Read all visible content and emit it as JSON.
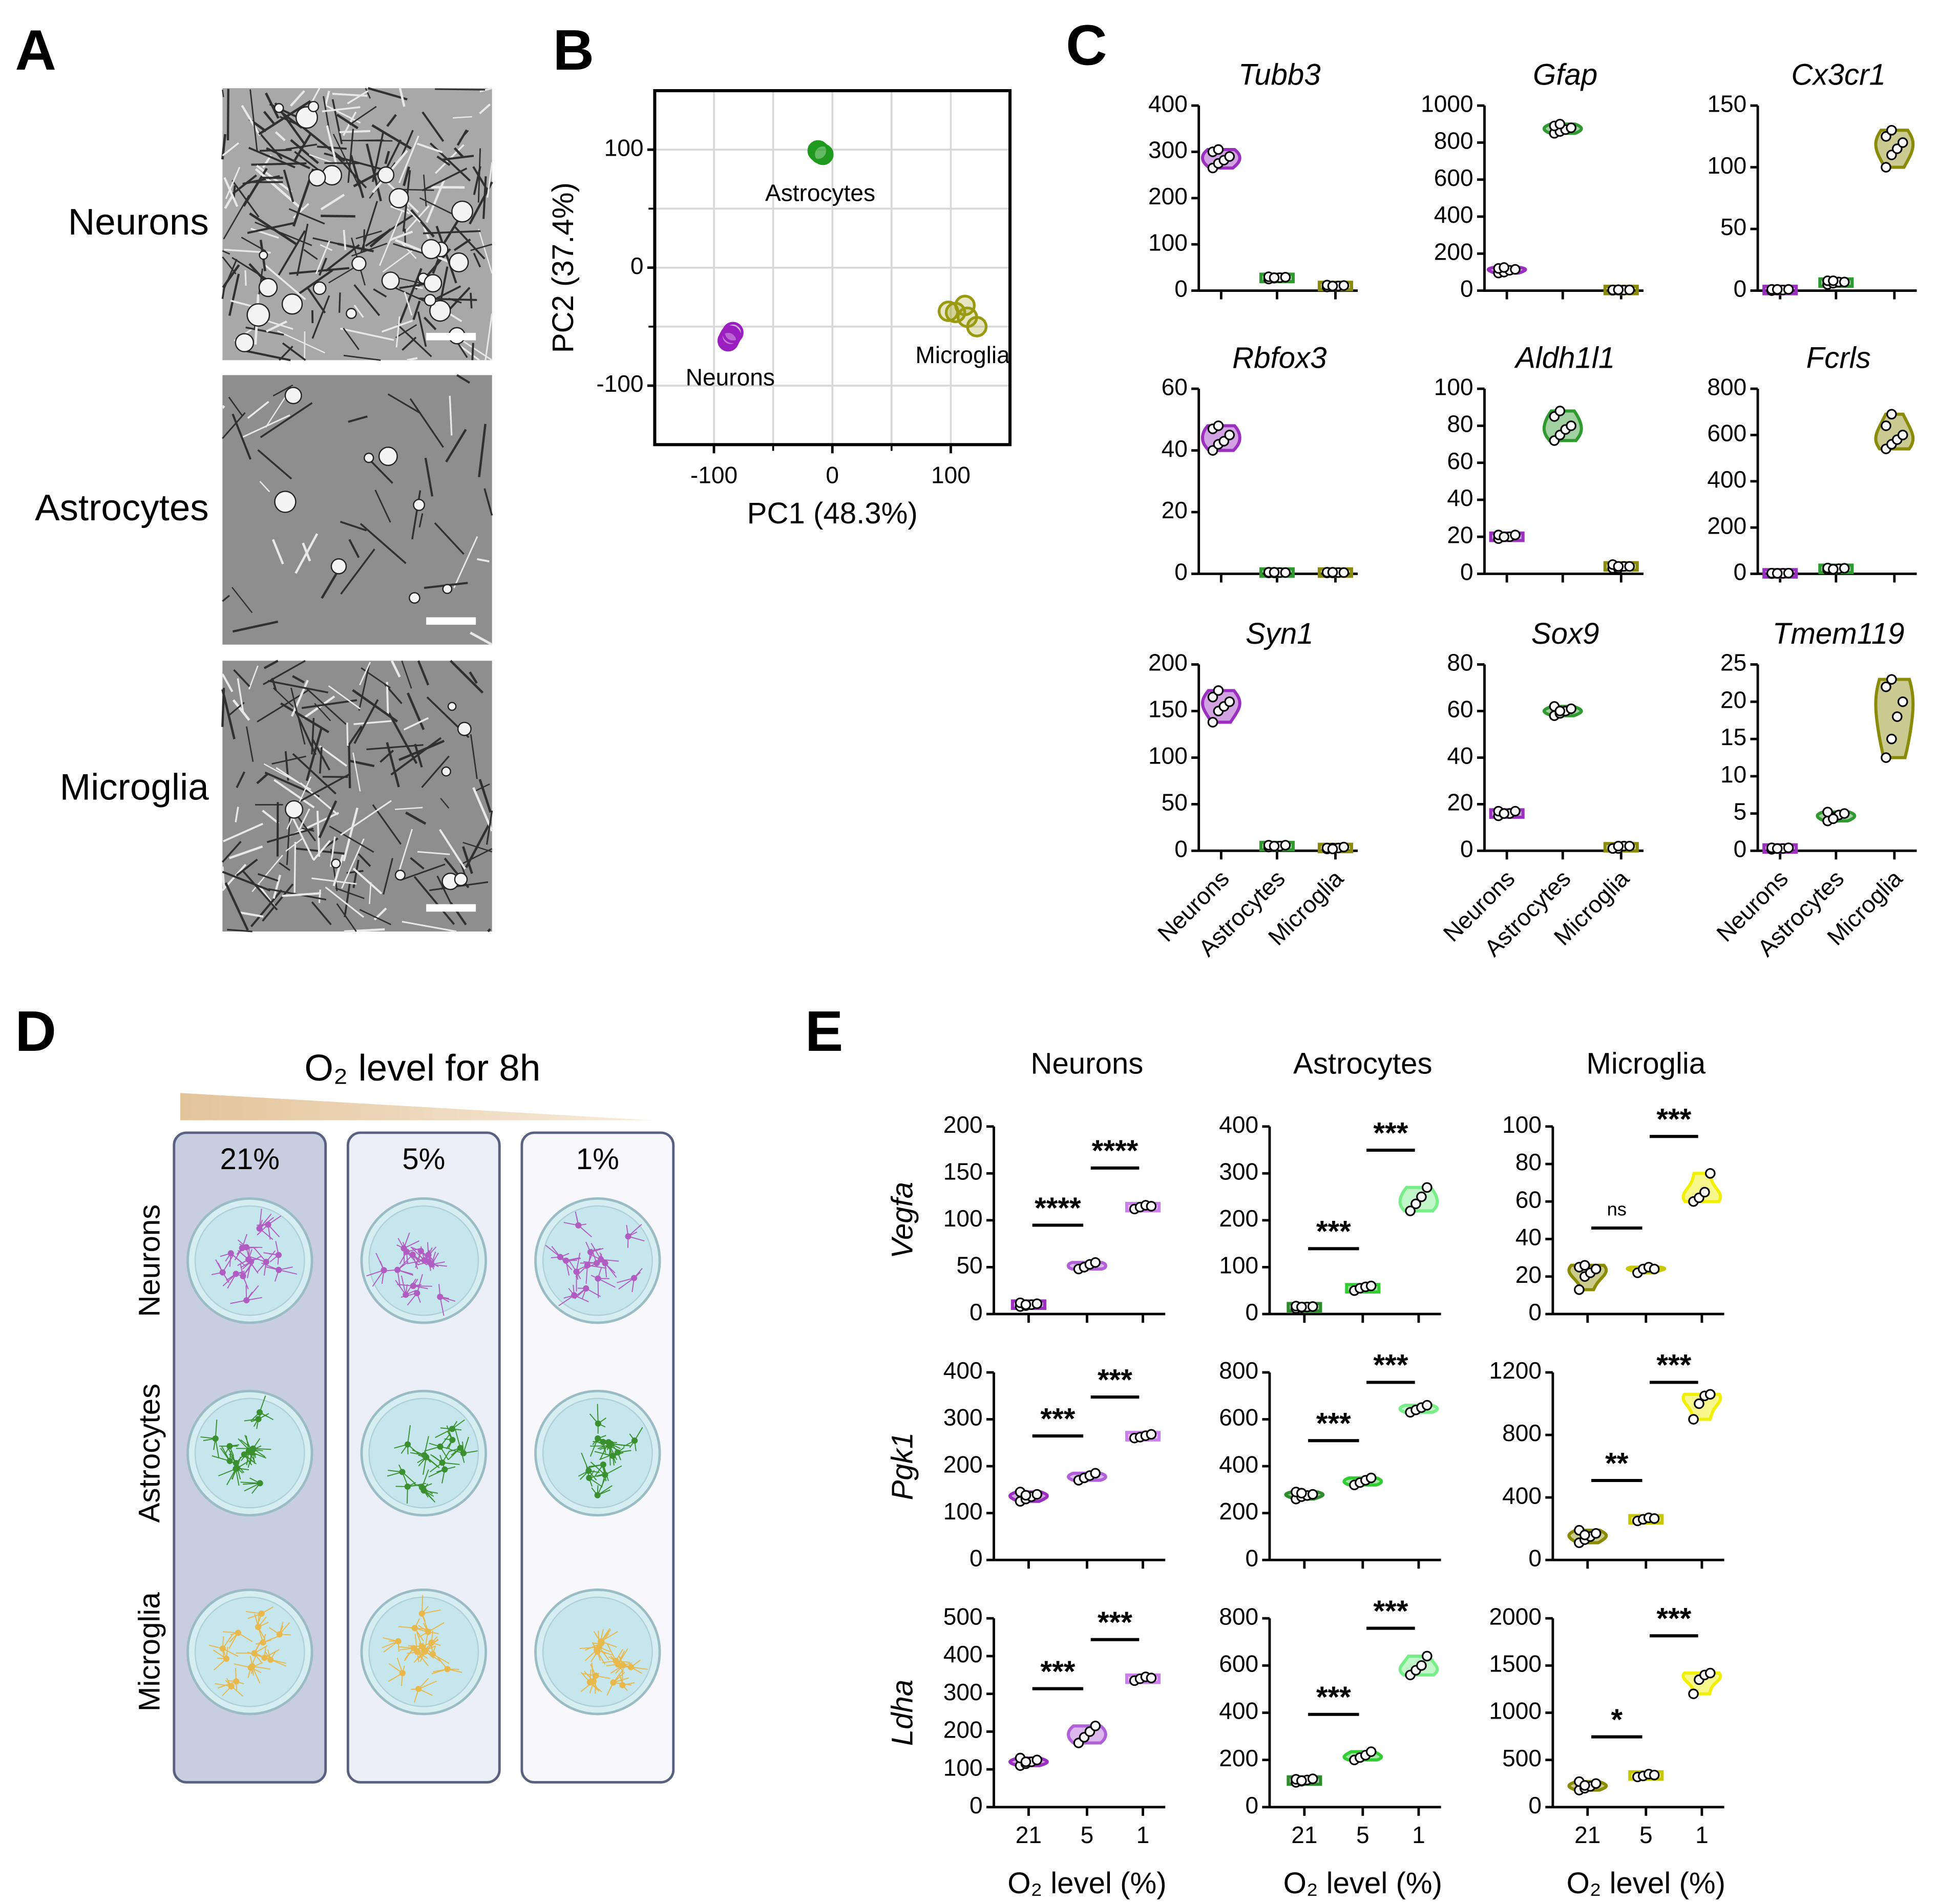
{
  "panel_labels": [
    "A",
    "B",
    "C",
    "D",
    "E"
  ],
  "panel_a": {
    "labels": [
      "Neurons",
      "Astrocytes",
      "Microglia"
    ]
  },
  "panel_d": {
    "title": "O₂ level for 8h",
    "conditions": [
      "21%",
      "5%",
      "1%"
    ],
    "cell_types": [
      "Neurons",
      "Astrocytes",
      "Microglia"
    ]
  },
  "chart_data": [
    {
      "type": "scatter",
      "xlabel": "PC1 (48.3%)",
      "ylabel": "PC2 (37.4%)",
      "xlim": [
        -150,
        150
      ],
      "ylim": [
        -150,
        150
      ],
      "xticks": [
        -100,
        0,
        100
      ],
      "yticks": [
        -100,
        0,
        100
      ],
      "xminor": [
        -50,
        50
      ],
      "yminor": [
        -50,
        50
      ],
      "grid": true,
      "series": [
        {
          "name": "Astrocytes",
          "color": "#1f9a1f",
          "x": [
            -12,
            -10,
            -8,
            -11
          ],
          "y": [
            99,
            97,
            96,
            98
          ]
        },
        {
          "name": "Neurons",
          "color": "#9b1fc0",
          "x": [
            -88,
            -86,
            -84,
            -87
          ],
          "y": [
            -62,
            -58,
            -55,
            -60
          ]
        },
        {
          "name": "Microglia",
          "color": "#9a9a10",
          "x": [
            98,
            104,
            112,
            114,
            122
          ],
          "y": [
            -37,
            -38,
            -32,
            -42,
            -50
          ]
        }
      ]
    },
    {
      "type": "violin",
      "title": "Tubb3",
      "ylim": [
        0,
        400
      ],
      "yticks": [
        0,
        100,
        200,
        300,
        400
      ],
      "groups": [
        {
          "color": "#9b30c0",
          "values": [
            265,
            275,
            282,
            290,
            300,
            305
          ]
        },
        {
          "color": "#2f9a2f",
          "values": [
            25,
            27,
            28,
            29,
            30,
            28
          ]
        },
        {
          "color": "#8b8b0a",
          "values": [
            8,
            9,
            10,
            11,
            12,
            10
          ]
        }
      ]
    },
    {
      "type": "violin",
      "title": "Gfap",
      "ylim": [
        0,
        1000
      ],
      "yticks": [
        0,
        200,
        400,
        600,
        800,
        1000
      ],
      "groups": [
        {
          "color": "#9b30c0",
          "values": [
            95,
            100,
            110,
            115,
            120,
            125
          ]
        },
        {
          "color": "#2f9a2f",
          "values": [
            850,
            860,
            870,
            880,
            890,
            900
          ]
        },
        {
          "color": "#8b8b0a",
          "values": [
            2,
            3,
            3,
            4,
            4,
            5
          ]
        }
      ]
    },
    {
      "type": "violin",
      "title": "Cx3cr1",
      "ylim": [
        0,
        150
      ],
      "yticks": [
        0,
        50,
        100,
        150
      ],
      "groups": [
        {
          "color": "#9b30c0",
          "values": [
            0,
            0.5,
            0.5,
            1,
            1,
            1
          ]
        },
        {
          "color": "#2f9a2f",
          "values": [
            5,
            6,
            7,
            7,
            8,
            8
          ]
        },
        {
          "color": "#8b8b0a",
          "values": [
            100,
            110,
            115,
            120,
            125,
            130
          ]
        }
      ]
    },
    {
      "type": "violin",
      "title": "Rbfox3",
      "ylim": [
        0,
        60
      ],
      "yticks": [
        0,
        20,
        40,
        60
      ],
      "groups": [
        {
          "color": "#9b30c0",
          "values": [
            40,
            42,
            43,
            45,
            47,
            48
          ]
        },
        {
          "color": "#2f9a2f",
          "values": [
            0.3,
            0.3,
            0.4,
            0.4,
            0.5,
            0.5
          ]
        },
        {
          "color": "#8b8b0a",
          "values": [
            0.3,
            0.3,
            0.4,
            0.4,
            0.5,
            0.5
          ]
        }
      ]
    },
    {
      "type": "violin",
      "title": "Aldh1l1",
      "ylim": [
        0,
        100
      ],
      "yticks": [
        0,
        20,
        40,
        60,
        80,
        100
      ],
      "groups": [
        {
          "color": "#9b30c0",
          "values": [
            19,
            20,
            20,
            21,
            21,
            20
          ]
        },
        {
          "color": "#2f9a2f",
          "values": [
            72,
            75,
            78,
            80,
            85,
            88
          ]
        },
        {
          "color": "#8b8b0a",
          "values": [
            3,
            3,
            4,
            4,
            5,
            4
          ]
        }
      ]
    },
    {
      "type": "violin",
      "title": "Fcrls",
      "ylim": [
        0,
        800
      ],
      "yticks": [
        0,
        200,
        400,
        600,
        800
      ],
      "groups": [
        {
          "color": "#9b30c0",
          "values": [
            1,
            2,
            2,
            3,
            3,
            2
          ]
        },
        {
          "color": "#2f9a2f",
          "values": [
            18,
            20,
            22,
            24,
            25,
            20
          ]
        },
        {
          "color": "#8b8b0a",
          "values": [
            540,
            560,
            580,
            600,
            640,
            690
          ]
        }
      ]
    },
    {
      "type": "violin",
      "title": "Syn1",
      "ylim": [
        0,
        200
      ],
      "yticks": [
        0,
        50,
        100,
        150,
        200
      ],
      "categories": [
        "Neurons",
        "Astrocytes",
        "Microglia"
      ],
      "groups": [
        {
          "color": "#9b30c0",
          "values": [
            138,
            150,
            155,
            160,
            165,
            172
          ]
        },
        {
          "color": "#2f9a2f",
          "values": [
            4,
            5,
            5,
            6,
            6,
            5
          ]
        },
        {
          "color": "#8b8b0a",
          "values": [
            2,
            3,
            3,
            4,
            3,
            2
          ]
        }
      ]
    },
    {
      "type": "violin",
      "title": "Sox9",
      "ylim": [
        0,
        80
      ],
      "yticks": [
        0,
        20,
        40,
        60,
        80
      ],
      "categories": [
        "Neurons",
        "Astrocytes",
        "Microglia"
      ],
      "groups": [
        {
          "color": "#9b30c0",
          "values": [
            15,
            16,
            16,
            17,
            17,
            16
          ]
        },
        {
          "color": "#2f9a2f",
          "values": [
            58,
            59,
            60,
            61,
            62,
            60
          ]
        },
        {
          "color": "#8b8b0a",
          "values": [
            1,
            1,
            2,
            2,
            1,
            2
          ]
        }
      ]
    },
    {
      "type": "violin",
      "title": "Tmem119",
      "ylim": [
        0,
        25
      ],
      "yticks": [
        0,
        5,
        10,
        15,
        20,
        25
      ],
      "categories": [
        "Neurons",
        "Astrocytes",
        "Microglia"
      ],
      "groups": [
        {
          "color": "#9b30c0",
          "values": [
            0.2,
            0.3,
            0.3,
            0.4,
            0.4,
            0.3
          ]
        },
        {
          "color": "#2f9a2f",
          "values": [
            4,
            4.5,
            4.8,
            5,
            5.2,
            4.3
          ]
        },
        {
          "color": "#8b8b0a",
          "values": [
            12.5,
            15,
            18,
            20,
            22,
            23
          ]
        }
      ]
    },
    {
      "type": "violin",
      "title": "Neurons",
      "ylabel": "Vegfa",
      "ylim": [
        0,
        200
      ],
      "yticks": [
        0,
        50,
        100,
        150,
        200
      ],
      "annotations": [
        "****",
        "****"
      ],
      "groups": [
        {
          "color": "#9b30c0",
          "values": [
            8,
            9,
            10,
            11,
            12,
            10
          ]
        },
        {
          "color": "#b060d8",
          "values": [
            48,
            50,
            53,
            55
          ]
        },
        {
          "color": "#cc80ee",
          "values": [
            112,
            114,
            116,
            115
          ]
        }
      ]
    },
    {
      "type": "violin",
      "title": "Astrocytes",
      "ylim": [
        0,
        400
      ],
      "yticks": [
        0,
        100,
        200,
        300,
        400
      ],
      "annotations": [
        "***",
        "***"
      ],
      "groups": [
        {
          "color": "#2e8b2e",
          "values": [
            12,
            14,
            15,
            16,
            17,
            15
          ]
        },
        {
          "color": "#33cc33",
          "values": [
            50,
            55,
            58,
            60
          ]
        },
        {
          "color": "#77ee88",
          "values": [
            220,
            235,
            250,
            270
          ]
        }
      ]
    },
    {
      "type": "violin",
      "title": "Microglia",
      "ylim": [
        0,
        100
      ],
      "yticks": [
        0,
        20,
        40,
        60,
        80,
        100
      ],
      "annotations": [
        "ns",
        "***"
      ],
      "groups": [
        {
          "color": "#8b8b00",
          "values": [
            13,
            20,
            22,
            24,
            25,
            26
          ]
        },
        {
          "color": "#c8c800",
          "values": [
            22,
            24,
            25,
            24
          ]
        },
        {
          "color": "#f0f000",
          "values": [
            60,
            62,
            65,
            75
          ]
        }
      ]
    },
    {
      "type": "violin",
      "ylabel": "Pgk1",
      "ylim": [
        0,
        400
      ],
      "yticks": [
        0,
        100,
        200,
        300,
        400
      ],
      "annotations": [
        "***",
        "***"
      ],
      "groups": [
        {
          "color": "#9b30c0",
          "values": [
            125,
            130,
            135,
            140,
            145,
            138
          ]
        },
        {
          "color": "#b060d8",
          "values": [
            170,
            175,
            180,
            185
          ]
        },
        {
          "color": "#cc80ee",
          "values": [
            260,
            262,
            265,
            268
          ]
        }
      ]
    },
    {
      "type": "violin",
      "ylim": [
        0,
        800
      ],
      "yticks": [
        0,
        200,
        400,
        600,
        800
      ],
      "annotations": [
        "***",
        "***"
      ],
      "groups": [
        {
          "color": "#2e8b2e",
          "values": [
            260,
            270,
            275,
            280,
            290,
            285
          ]
        },
        {
          "color": "#33cc33",
          "values": [
            320,
            330,
            340,
            350
          ]
        },
        {
          "color": "#77ee88",
          "values": [
            630,
            640,
            650,
            660
          ]
        }
      ]
    },
    {
      "type": "violin",
      "ylim": [
        0,
        1200
      ],
      "yticks": [
        0,
        400,
        800,
        1200
      ],
      "annotations": [
        "**",
        "***"
      ],
      "groups": [
        {
          "color": "#8b8b00",
          "values": [
            110,
            130,
            150,
            170,
            190,
            160
          ]
        },
        {
          "color": "#c8c800",
          "values": [
            250,
            260,
            270,
            265
          ]
        },
        {
          "color": "#f0f000",
          "values": [
            900,
            1000,
            1050,
            1060
          ]
        }
      ]
    },
    {
      "type": "violin",
      "ylabel": "Ldha",
      "xlabel": "O₂ level (%)",
      "categories": [
        "21",
        "5",
        "1"
      ],
      "ylim": [
        0,
        500
      ],
      "yticks": [
        0,
        100,
        200,
        300,
        400,
        500
      ],
      "annotations": [
        "***",
        "***"
      ],
      "groups": [
        {
          "color": "#9b30c0",
          "values": [
            110,
            115,
            120,
            125,
            130,
            120
          ]
        },
        {
          "color": "#b060d8",
          "values": [
            170,
            185,
            200,
            215
          ]
        },
        {
          "color": "#cc80ee",
          "values": [
            335,
            340,
            345,
            342
          ]
        }
      ]
    },
    {
      "type": "violin",
      "xlabel": "O₂ level (%)",
      "categories": [
        "21",
        "5",
        "1"
      ],
      "ylim": [
        0,
        800
      ],
      "yticks": [
        0,
        200,
        400,
        600,
        800
      ],
      "annotations": [
        "***",
        "***"
      ],
      "groups": [
        {
          "color": "#2e8b2e",
          "values": [
            105,
            110,
            115,
            120,
            118,
            112
          ]
        },
        {
          "color": "#33cc33",
          "values": [
            200,
            210,
            220,
            235
          ]
        },
        {
          "color": "#77ee88",
          "values": [
            560,
            580,
            600,
            640
          ]
        }
      ]
    },
    {
      "type": "violin",
      "xlabel": "O₂ level (%)",
      "categories": [
        "21",
        "5",
        "1"
      ],
      "ylim": [
        0,
        2000
      ],
      "yticks": [
        0,
        500,
        1000,
        1500,
        2000
      ],
      "annotations": [
        "*",
        "***"
      ],
      "groups": [
        {
          "color": "#8b8b00",
          "values": [
            180,
            200,
            220,
            250,
            270,
            230
          ]
        },
        {
          "color": "#c8c800",
          "values": [
            320,
            330,
            350,
            340
          ]
        },
        {
          "color": "#f0f000",
          "values": [
            1200,
            1350,
            1400,
            1420
          ]
        }
      ]
    }
  ]
}
